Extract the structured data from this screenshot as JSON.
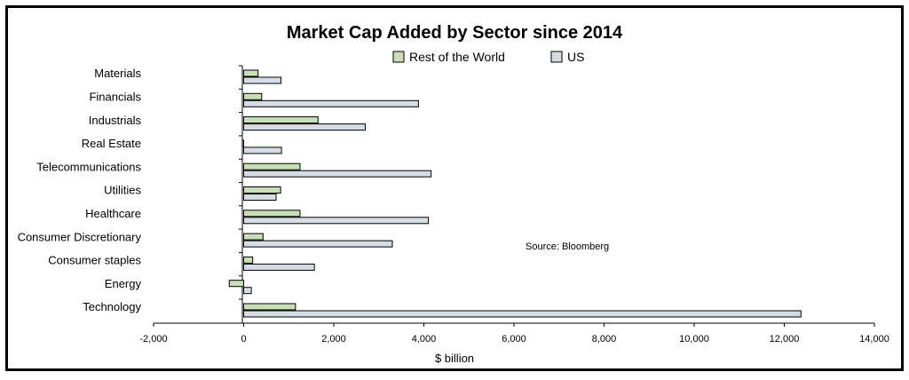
{
  "chart_data": {
    "type": "bar",
    "orientation": "horizontal",
    "title": "Market Cap Added by Sector since 2014",
    "annotation": "Source: Bloomberg",
    "xlabel": "$ billion",
    "xlim": [
      -2000,
      14000
    ],
    "xticks": [
      -2000,
      0,
      2000,
      4000,
      6000,
      8000,
      10000,
      12000,
      14000
    ],
    "xtick_labels": [
      "-2,000",
      "0",
      "2,000",
      "4,000",
      "6,000",
      "8,000",
      "10,000",
      "12,000",
      "14,000"
    ],
    "grid": false,
    "legend_position": "top-center",
    "categories": [
      "Materials",
      "Financials",
      "Industrials",
      "Real Estate",
      "Telecommunications",
      "Utilities",
      "Healthcare",
      "Consumer Discretionary",
      "Consumer staples",
      "Energy",
      "Technology"
    ],
    "series": [
      {
        "name": "Rest of the World",
        "color": "#c6e0b4",
        "values": [
          320,
          400,
          1650,
          -30,
          1250,
          820,
          1250,
          430,
          200,
          -320,
          1150
        ]
      },
      {
        "name": "US",
        "color": "#d6dce4",
        "values": [
          830,
          3880,
          2700,
          840,
          4160,
          720,
          4100,
          3300,
          1570,
          170,
          12370
        ]
      }
    ]
  }
}
